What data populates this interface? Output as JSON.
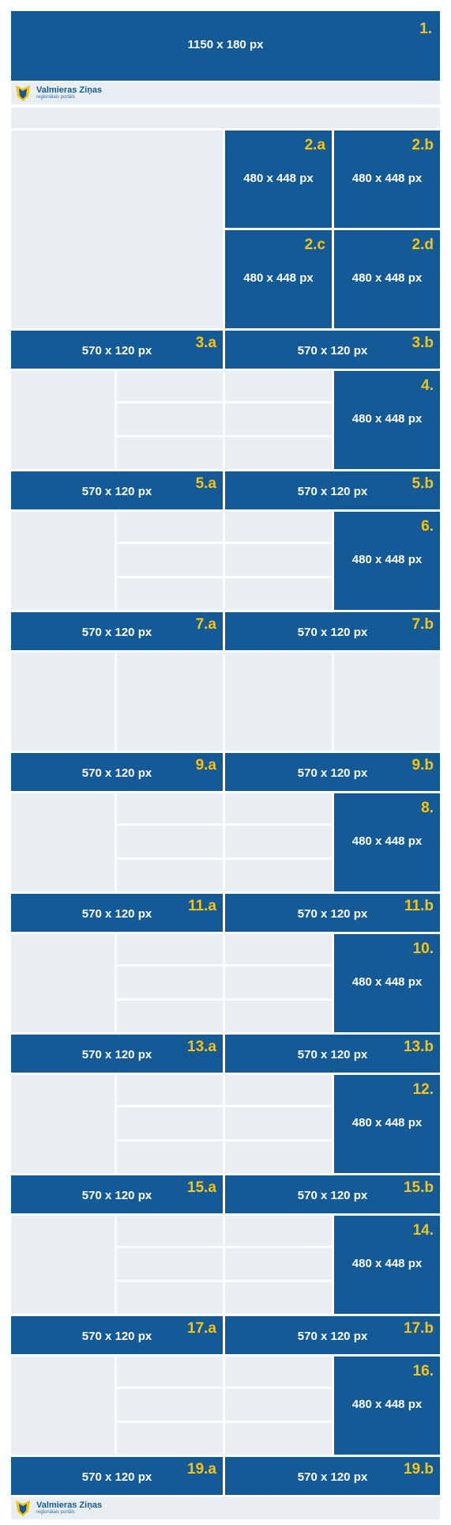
{
  "header_ad": {
    "size": "1150 x 180 px",
    "label": "1."
  },
  "logo": {
    "name": "Valmieras Ziņas",
    "tagline": "reģionālais portāls",
    "colors": {
      "blue": "#145a96",
      "yellow": "#f6c411"
    }
  },
  "block2": [
    {
      "label": "2.a",
      "size": "480 x 448 px"
    },
    {
      "label": "2.b",
      "size": "480 x 448 px"
    },
    {
      "label": "2.c",
      "size": "480 x 448 px"
    },
    {
      "label": "2.d",
      "size": "480 x 448 px"
    }
  ],
  "rows": {
    "r3": {
      "a": {
        "size": "570 x 120 px",
        "label": "3.a"
      },
      "b": {
        "size": "570 x 120 px",
        "label": "3.b"
      }
    },
    "r5": {
      "a": {
        "size": "570 x 120 px",
        "label": "5.a"
      },
      "b": {
        "size": "570 x 120 px",
        "label": "5.b"
      }
    },
    "r7": {
      "a": {
        "size": "570 x 120 px",
        "label": "7.a"
      },
      "b": {
        "size": "570 x 120 px",
        "label": "7.b"
      }
    },
    "r9": {
      "a": {
        "size": "570 x 120 px",
        "label": "9.a"
      },
      "b": {
        "size": "570 x 120 px",
        "label": "9.b"
      }
    },
    "r11": {
      "a": {
        "size": "570 x 120 px",
        "label": "11.a"
      },
      "b": {
        "size": "570 x 120 px",
        "label": "11.b"
      }
    },
    "r13": {
      "a": {
        "size": "570 x 120 px",
        "label": "13.a"
      },
      "b": {
        "size": "570 x 120 px",
        "label": "13.b"
      }
    },
    "r15": {
      "a": {
        "size": "570 x 120 px",
        "label": "15.a"
      },
      "b": {
        "size": "570 x 120 px",
        "label": "15.b"
      }
    },
    "r17": {
      "a": {
        "size": "570 x 120 px",
        "label": "17.a"
      },
      "b": {
        "size": "570 x 120 px",
        "label": "17.b"
      }
    },
    "r19": {
      "a": {
        "size": "570 x 120 px",
        "label": "19.a"
      },
      "b": {
        "size": "570 x 120 px",
        "label": "19.b"
      }
    }
  },
  "square_ads": {
    "s4": {
      "label": "4.",
      "size": "480 x 448 px"
    },
    "s6": {
      "label": "6.",
      "size": "480 x 448 px"
    },
    "s8": {
      "label": "8.",
      "size": "480 x 448 px"
    },
    "s10": {
      "label": "10.",
      "size": "480 x 448 px"
    },
    "s12": {
      "label": "12.",
      "size": "480 x 448 px"
    },
    "s14": {
      "label": "14.",
      "size": "480 x 448 px"
    },
    "s16": {
      "label": "16.",
      "size": "480 x 448 px"
    }
  }
}
